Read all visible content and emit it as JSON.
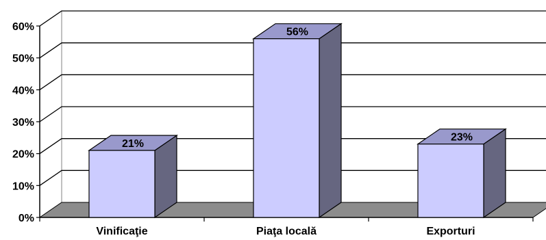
{
  "chart_data": {
    "type": "bar",
    "style": "3d-column",
    "categories": [
      "Vinificaţie",
      "Piaţa locală",
      "Exporturi"
    ],
    "values": [
      21,
      56,
      23
    ],
    "data_labels": [
      "21%",
      "56%",
      "23%"
    ],
    "ylim": [
      0,
      60
    ],
    "yticks": [
      0,
      10,
      20,
      30,
      40,
      50,
      60
    ],
    "ytick_labels": [
      "0%",
      "10%",
      "20%",
      "30%",
      "40%",
      "50%",
      "60%"
    ],
    "grid": true,
    "legend": false,
    "colors": {
      "bar_front": "#CCCCFF",
      "bar_side": "#666680",
      "bar_top": "#9999CC",
      "floor": "#8C8C8C",
      "wall": "#FFFFFF",
      "gridline": "#000000"
    }
  }
}
